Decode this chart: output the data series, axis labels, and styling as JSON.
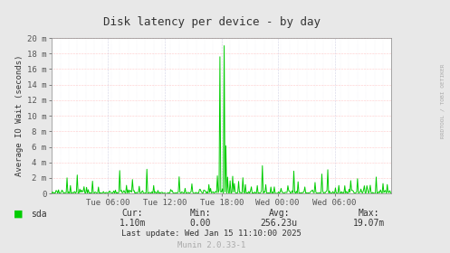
{
  "title": "Disk latency per device - by day",
  "ylabel": "Average IO Wait (seconds)",
  "bg_color": "#e8e8e8",
  "plot_bg_color": "#ffffff",
  "grid_h_color": "#ff9999",
  "grid_v_color": "#aaaacc",
  "line_color": "#00cc00",
  "line_width": 0.7,
  "ylim": [
    0,
    0.02
  ],
  "yticks": [
    0,
    0.002,
    0.004,
    0.006,
    0.008,
    0.01,
    0.012,
    0.014,
    0.016,
    0.018,
    0.02
  ],
  "ytick_labels": [
    "0",
    "2 m",
    "4 m",
    "6 m",
    "8 m",
    "10 m",
    "12 m",
    "14 m",
    "16 m",
    "18 m",
    "20 m"
  ],
  "xtick_labels": [
    "Tue 06:00",
    "Tue 12:00",
    "Tue 18:00",
    "Wed 00:00",
    "Wed 06:00"
  ],
  "legend_label": "sda",
  "legend_color": "#00cc00",
  "cur_label": "Cur:",
  "cur_value": "1.10m",
  "min_label": "Min:",
  "min_value": "0.00",
  "avg_label": "Avg:",
  "avg_value": "256.23u",
  "max_label": "Max:",
  "max_value": "19.07m",
  "last_update": "Last update: Wed Jan 15 11:10:00 2025",
  "munin_label": "Munin 2.0.33-1",
  "side_label": "RRDTOOL / TOBI OETIKER",
  "font_family": "monospace",
  "title_fontsize": 9,
  "axis_fontsize": 6.5,
  "footer_fontsize": 7,
  "n_points": 400,
  "xlim": [
    0,
    400
  ]
}
